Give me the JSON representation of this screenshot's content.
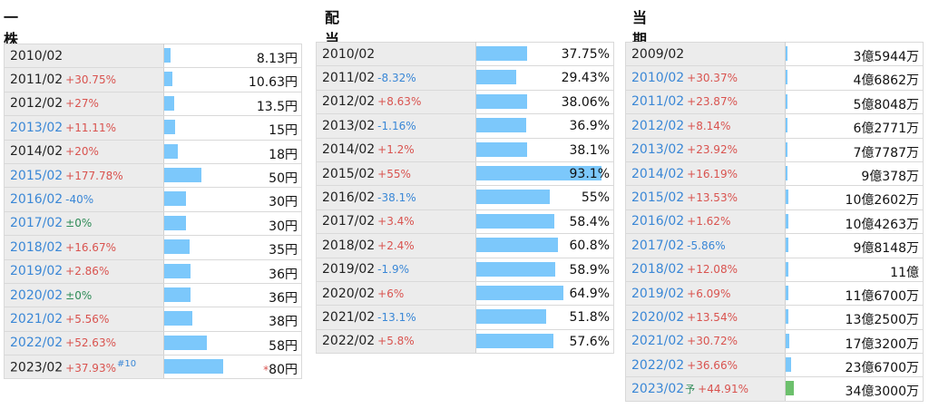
{
  "dividend": {
    "title": "一株配当",
    "rows": [
      {
        "year": "2010/02",
        "change": "",
        "dir": "",
        "value": "8.13円",
        "frac": 0.045,
        "yearBlue": false
      },
      {
        "year": "2011/02",
        "change": "+30.75%",
        "dir": "pos",
        "value": "10.63円",
        "frac": 0.058,
        "yearBlue": false
      },
      {
        "year": "2012/02",
        "change": "+27%",
        "dir": "pos",
        "value": "13.5円",
        "frac": 0.074,
        "yearBlue": false
      },
      {
        "year": "2013/02",
        "change": "+11.11%",
        "dir": "pos",
        "value": "15円",
        "frac": 0.082,
        "yearBlue": true
      },
      {
        "year": "2014/02",
        "change": "+20%",
        "dir": "pos",
        "value": "18円",
        "frac": 0.099,
        "yearBlue": false
      },
      {
        "year": "2015/02",
        "change": "+177.78%",
        "dir": "pos",
        "value": "50円",
        "frac": 0.275,
        "yearBlue": true
      },
      {
        "year": "2016/02",
        "change": "-40%",
        "dir": "neg",
        "value": "30円",
        "frac": 0.165,
        "yearBlue": true
      },
      {
        "year": "2017/02",
        "change": "±0%",
        "dir": "zero",
        "value": "30円",
        "frac": 0.165,
        "yearBlue": true
      },
      {
        "year": "2018/02",
        "change": "+16.67%",
        "dir": "pos",
        "value": "35円",
        "frac": 0.192,
        "yearBlue": true
      },
      {
        "year": "2019/02",
        "change": "+2.86%",
        "dir": "pos",
        "value": "36円",
        "frac": 0.198,
        "yearBlue": true
      },
      {
        "year": "2020/02",
        "change": "±0%",
        "dir": "zero",
        "value": "36円",
        "frac": 0.198,
        "yearBlue": true
      },
      {
        "year": "2021/02",
        "change": "+5.56%",
        "dir": "pos",
        "value": "38円",
        "frac": 0.209,
        "yearBlue": true
      },
      {
        "year": "2022/02",
        "change": "+52.63%",
        "dir": "pos",
        "value": "58円",
        "frac": 0.319,
        "yearBlue": true
      },
      {
        "year": "2023/02",
        "change": "+37.93%",
        "dir": "pos",
        "value": "80円",
        "frac": 0.44,
        "yearBlue": false,
        "note": "#10",
        "star": "*"
      }
    ]
  },
  "payout": {
    "title": "配当性向",
    "rows": [
      {
        "year": "2010/02",
        "change": "",
        "dir": "",
        "value": "37.75%",
        "frac": 0.3775
      },
      {
        "year": "2011/02",
        "change": "-8.32%",
        "dir": "neg",
        "value": "29.43%",
        "frac": 0.2943
      },
      {
        "year": "2012/02",
        "change": "+8.63%",
        "dir": "pos",
        "value": "38.06%",
        "frac": 0.3806
      },
      {
        "year": "2013/02",
        "change": "-1.16%",
        "dir": "neg",
        "value": "36.9%",
        "frac": 0.369
      },
      {
        "year": "2014/02",
        "change": "+1.2%",
        "dir": "pos",
        "value": "38.1%",
        "frac": 0.381
      },
      {
        "year": "2015/02",
        "change": "+55%",
        "dir": "pos",
        "value": "93.1%",
        "frac": 0.931
      },
      {
        "year": "2016/02",
        "change": "-38.1%",
        "dir": "neg",
        "value": "55%",
        "frac": 0.55
      },
      {
        "year": "2017/02",
        "change": "+3.4%",
        "dir": "pos",
        "value": "58.4%",
        "frac": 0.584
      },
      {
        "year": "2018/02",
        "change": "+2.4%",
        "dir": "pos",
        "value": "60.8%",
        "frac": 0.608
      },
      {
        "year": "2019/02",
        "change": "-1.9%",
        "dir": "neg",
        "value": "58.9%",
        "frac": 0.589
      },
      {
        "year": "2020/02",
        "change": "+6%",
        "dir": "pos",
        "value": "64.9%",
        "frac": 0.649
      },
      {
        "year": "2021/02",
        "change": "-13.1%",
        "dir": "neg",
        "value": "51.8%",
        "frac": 0.518
      },
      {
        "year": "2022/02",
        "change": "+5.8%",
        "dir": "pos",
        "value": "57.6%",
        "frac": 0.576
      }
    ]
  },
  "netIncome": {
    "title": "当期純利益",
    "rows": [
      {
        "year": "2009/02",
        "change": "",
        "dir": "",
        "value": "3億5944万",
        "frac": 0.006,
        "yearBlue": false
      },
      {
        "year": "2010/02",
        "change": "+30.37%",
        "dir": "pos",
        "value": "4億6862万",
        "frac": 0.008,
        "yearBlue": true
      },
      {
        "year": "2011/02",
        "change": "+23.87%",
        "dir": "pos",
        "value": "5億8048万",
        "frac": 0.01,
        "yearBlue": true
      },
      {
        "year": "2012/02",
        "change": "+8.14%",
        "dir": "pos",
        "value": "6億2771万",
        "frac": 0.011,
        "yearBlue": true
      },
      {
        "year": "2013/02",
        "change": "+23.92%",
        "dir": "pos",
        "value": "7億7787万",
        "frac": 0.013,
        "yearBlue": true
      },
      {
        "year": "2014/02",
        "change": "+16.19%",
        "dir": "pos",
        "value": "9億378万",
        "frac": 0.015,
        "yearBlue": true
      },
      {
        "year": "2015/02",
        "change": "+13.53%",
        "dir": "pos",
        "value": "10億2602万",
        "frac": 0.017,
        "yearBlue": true
      },
      {
        "year": "2016/02",
        "change": "+1.62%",
        "dir": "pos",
        "value": "10億4263万",
        "frac": 0.018,
        "yearBlue": true
      },
      {
        "year": "2017/02",
        "change": "-5.86%",
        "dir": "neg",
        "value": "9億8148万",
        "frac": 0.017,
        "yearBlue": true
      },
      {
        "year": "2018/02",
        "change": "+12.08%",
        "dir": "pos",
        "value": "11億",
        "frac": 0.019,
        "yearBlue": true
      },
      {
        "year": "2019/02",
        "change": "+6.09%",
        "dir": "pos",
        "value": "11億6700万",
        "frac": 0.02,
        "yearBlue": true
      },
      {
        "year": "2020/02",
        "change": "+13.54%",
        "dir": "pos",
        "value": "13億2500万",
        "frac": 0.022,
        "yearBlue": true
      },
      {
        "year": "2021/02",
        "change": "+30.72%",
        "dir": "pos",
        "value": "17億3200万",
        "frac": 0.029,
        "yearBlue": true
      },
      {
        "year": "2022/02",
        "change": "+36.66%",
        "dir": "pos",
        "value": "23億6700万",
        "frac": 0.04,
        "yearBlue": true
      },
      {
        "year": "2023/02",
        "change": "+44.91%",
        "dir": "pos",
        "value": "34億3000万",
        "frac": 0.058,
        "yearBlue": true,
        "yo": "予",
        "green": true
      }
    ]
  }
}
